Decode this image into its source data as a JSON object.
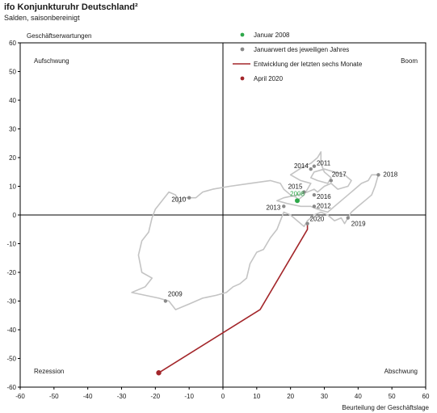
{
  "header": {
    "title": "ifo Konjunkturuhr  Deutschland²",
    "subtitle": "Salden, saisonbereinigt"
  },
  "chart_data": {
    "type": "line",
    "xlabel": "Beurteilung der Geschäftslage",
    "ylabel": "Geschäftserwartungen",
    "xlim": [
      -60,
      60
    ],
    "ylim": [
      -60,
      60
    ],
    "xticks": [
      -60,
      -50,
      -40,
      -30,
      -20,
      -10,
      0,
      10,
      20,
      30,
      40,
      50,
      60
    ],
    "yticks": [
      -60,
      -50,
      -40,
      -30,
      -20,
      -10,
      0,
      10,
      20,
      30,
      40,
      50,
      60
    ],
    "grid": false,
    "legend_position": "top-center",
    "quadrant_labels": [
      {
        "text": "Aufschwung",
        "position": "top-left"
      },
      {
        "text": "Boom",
        "position": "top-right"
      },
      {
        "text": "Rezession",
        "position": "bottom-left"
      },
      {
        "text": "Abschwung",
        "position": "bottom-right"
      }
    ],
    "legend": [
      {
        "label": "Januar 2008",
        "marker": "dot",
        "color": "#2ea84a"
      },
      {
        "label": "Januarwert des jeweiligen Jahres",
        "marker": "dot",
        "color": "#8a8a8a"
      },
      {
        "label": "Entwicklung der letzten sechs Monate",
        "marker": "line",
        "color": "#a3262a"
      },
      {
        "label": "April 2020",
        "marker": "dot",
        "color": "#a3262a"
      }
    ],
    "colors": {
      "history": "#c4c4c4",
      "recent": "#a3262a",
      "january": "#8a8a8a",
      "jan2008": "#2ea84a",
      "axes": "#000000"
    },
    "history_path": [
      [
        22,
        5
      ],
      [
        24,
        7
      ],
      [
        25,
        9
      ],
      [
        26,
        11
      ],
      [
        23,
        12
      ],
      [
        20,
        14
      ],
      [
        24,
        17
      ],
      [
        26,
        18
      ],
      [
        28,
        20
      ],
      [
        29,
        22
      ],
      [
        29,
        18
      ],
      [
        30,
        15
      ],
      [
        32,
        13
      ],
      [
        31,
        11
      ],
      [
        28,
        12
      ],
      [
        26,
        13
      ],
      [
        27,
        15
      ],
      [
        30,
        16
      ],
      [
        33,
        15
      ],
      [
        36,
        14
      ],
      [
        38,
        12
      ],
      [
        37,
        10
      ],
      [
        34,
        9
      ],
      [
        32,
        11
      ],
      [
        30,
        10
      ],
      [
        28,
        8
      ],
      [
        27,
        9
      ],
      [
        25,
        8
      ],
      [
        22,
        7
      ],
      [
        18,
        6
      ],
      [
        16,
        5
      ],
      [
        19,
        4
      ],
      [
        23,
        3
      ],
      [
        26,
        3
      ],
      [
        28,
        2
      ],
      [
        31,
        1
      ],
      [
        33,
        3
      ],
      [
        35,
        5
      ],
      [
        37,
        7
      ],
      [
        39,
        9
      ],
      [
        41,
        11
      ],
      [
        43,
        12
      ],
      [
        44,
        14
      ],
      [
        46,
        14
      ],
      [
        45,
        10
      ],
      [
        44,
        7
      ],
      [
        42,
        5
      ],
      [
        40,
        3
      ],
      [
        38,
        1
      ],
      [
        37,
        -1
      ],
      [
        36,
        -3
      ],
      [
        35,
        -1
      ],
      [
        33,
        -2
      ],
      [
        31,
        0
      ],
      [
        29,
        1
      ],
      [
        27,
        0
      ],
      [
        25,
        -2
      ],
      [
        24,
        -4
      ],
      [
        22,
        -2
      ],
      [
        20,
        0
      ],
      [
        18,
        1
      ],
      [
        17,
        -2
      ],
      [
        16,
        -5
      ],
      [
        14,
        -8
      ],
      [
        12,
        -12
      ],
      [
        10,
        -13
      ],
      [
        8,
        -17
      ],
      [
        7,
        -22
      ],
      [
        5,
        -24
      ],
      [
        3,
        -25
      ],
      [
        1,
        -27
      ],
      [
        -2,
        -28
      ],
      [
        -6,
        -29
      ],
      [
        -10,
        -31
      ],
      [
        -14,
        -33
      ],
      [
        -16,
        -30
      ],
      [
        -19,
        -29
      ],
      [
        -23,
        -28
      ],
      [
        -27,
        -27
      ],
      [
        -23,
        -25
      ],
      [
        -21,
        -22
      ],
      [
        -24,
        -20
      ],
      [
        -25,
        -14
      ],
      [
        -24,
        -9
      ],
      [
        -22,
        -6
      ],
      [
        -21,
        -1
      ],
      [
        -20,
        2
      ],
      [
        -18,
        5
      ],
      [
        -16,
        8
      ],
      [
        -14,
        7
      ],
      [
        -13,
        4
      ],
      [
        -12,
        6
      ],
      [
        -10,
        6
      ],
      [
        -8,
        6
      ],
      [
        -6,
        8
      ],
      [
        -3,
        9
      ],
      [
        2,
        10
      ],
      [
        8,
        11
      ],
      [
        14,
        12
      ],
      [
        17,
        11
      ],
      [
        18,
        9
      ],
      [
        20,
        7
      ],
      [
        22,
        6
      ]
    ],
    "recent_path": [
      [
        25,
        -3
      ],
      [
        25,
        -5
      ],
      [
        11,
        -33
      ],
      [
        -19,
        -55
      ]
    ],
    "january_points": [
      {
        "label": "2008",
        "x": 22,
        "y": 5,
        "color": "#2ea84a"
      },
      {
        "label": "2009",
        "x": -17,
        "y": -30
      },
      {
        "label": "2010",
        "x": -10,
        "y": 6
      },
      {
        "label": "2011",
        "x": 27,
        "y": 17
      },
      {
        "label": "2012",
        "x": 27,
        "y": 3
      },
      {
        "label": "2013",
        "x": 18,
        "y": 3
      },
      {
        "label": "2014",
        "x": 26,
        "y": 16
      },
      {
        "label": "2015",
        "x": 24,
        "y": 8
      },
      {
        "label": "2016",
        "x": 27,
        "y": 7
      },
      {
        "label": "2017",
        "x": 32,
        "y": 12
      },
      {
        "label": "2018",
        "x": 46,
        "y": 14
      },
      {
        "label": "2019",
        "x": 37,
        "y": -1
      },
      {
        "label": "2020",
        "x": 25,
        "y": -3
      }
    ],
    "april_2020": {
      "x": -19,
      "y": -55
    }
  }
}
